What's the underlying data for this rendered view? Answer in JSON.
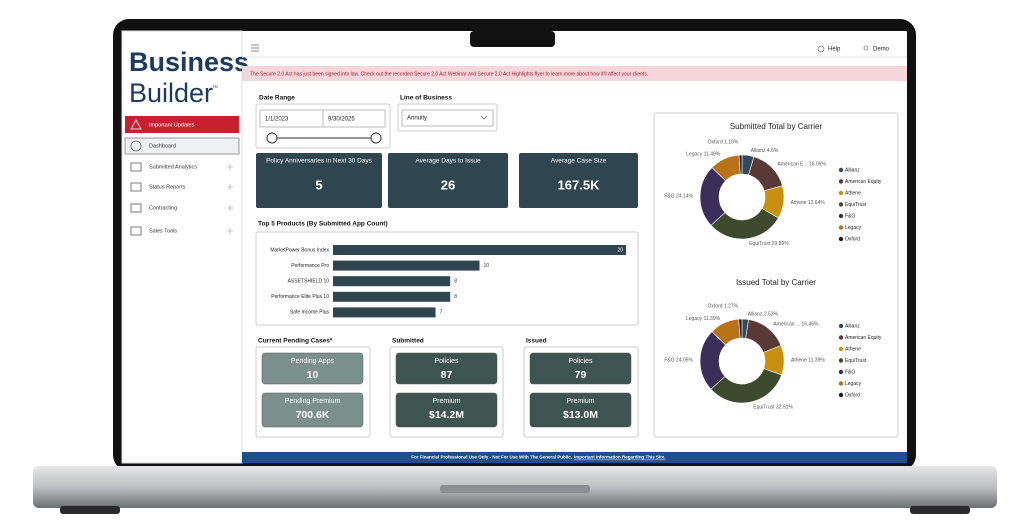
{
  "sidebar": {
    "logo_line1": "Business",
    "logo_line2": "Builder",
    "logo_tm": "™",
    "items": [
      "Important Updates",
      "Dashboard",
      "Submitted Analytics",
      "Status Reports",
      "Contracting",
      "Sales Tools"
    ]
  },
  "header": {
    "help": "Help",
    "user": "Demo"
  },
  "banner": "The Secure 2.0 Act has just been signed into law. Check out the recorded Secure 2.0 Act Webinar and Secure 2.0 Act Highlights flyer to learn more about how it'll affect your clients.",
  "filters": {
    "date_range_label": "Date Range",
    "start": "1/1/2023",
    "end": "9/30/2025",
    "line_of_business_label": "Line of Business",
    "line_of_business": "Annuity"
  },
  "kpis": [
    {
      "label": "Policy Anniversaries in Next 30 Days",
      "value": "5"
    },
    {
      "label": "Average Days to Issue",
      "value": "26"
    },
    {
      "label": "Average Case Size",
      "value": "167.5K"
    }
  ],
  "sections": {
    "pending": "Current Pending Cases*",
    "submitted": "Submitted",
    "issued": "Issued"
  },
  "cards": {
    "pending_apps": {
      "label": "Pending Apps",
      "value": "10"
    },
    "pending_premium": {
      "label": "Pending Premium",
      "value": "700.6K"
    },
    "submitted_policies": {
      "label": "Policies",
      "value": "87"
    },
    "submitted_premium": {
      "label": "Premium",
      "value": "$14.2M"
    },
    "issued_policies": {
      "label": "Policies",
      "value": "79"
    },
    "issued_premium": {
      "label": "Premium",
      "value": "$13.0M"
    }
  },
  "footer": {
    "notice": "For Financial Professional Use Only - Not For Use With The General Public.",
    "link": "Important Information Regarding This Site."
  },
  "chart_data": [
    {
      "type": "bar",
      "title": "Top 5 Products (By Submitted App Count)",
      "categories": [
        "MarketPower Bonus Index",
        "Performance Pro",
        "ASSETSHIELD 10",
        "Performance Elite Plus 10",
        "Safe Income Plus"
      ],
      "values": [
        20,
        10,
        8,
        8,
        7
      ],
      "color": "#2f4550"
    },
    {
      "type": "pie",
      "title": "Submitted Total by Carrier",
      "categories": [
        "Allianz",
        "American Equity",
        "Athene",
        "EquiTrust",
        "F&G",
        "Legacy",
        "Oxford"
      ],
      "values": [
        4.6,
        16.09,
        12.64,
        29.89,
        24.14,
        11.49,
        1.15
      ],
      "value_labels": [
        "Allianz 4.6%",
        "American E... 16.09%",
        "Athene 12.64%",
        "EquiTrust 29.89%",
        "F&G 24.14%",
        "Legacy 11.49%",
        "Oxford 1.15%"
      ],
      "colors": [
        "#34495a",
        "#5a3a36",
        "#c8900f",
        "#3d4a2e",
        "#3b2e5a",
        "#b87318",
        "#1e1e1e"
      ]
    },
    {
      "type": "pie",
      "title": "Issued Total by Carrier",
      "categories": [
        "Allianz",
        "American Equity",
        "Athene",
        "EquiTrust",
        "F&G",
        "Legacy",
        "Oxford"
      ],
      "values": [
        2.53,
        16.46,
        11.39,
        32.91,
        24.05,
        11.39,
        1.27
      ],
      "value_labels": [
        "Allianz 2.53%",
        "American ... 16.46%",
        "Athene 11.39%",
        "EquiTrust 32.91%",
        "F&G 24.05%",
        "Legacy 11.39%",
        "Oxford 1.27%"
      ],
      "colors": [
        "#34495a",
        "#5a3a36",
        "#c8900f",
        "#3d4a2e",
        "#3b2e5a",
        "#b87318",
        "#1e1e1e"
      ]
    }
  ]
}
